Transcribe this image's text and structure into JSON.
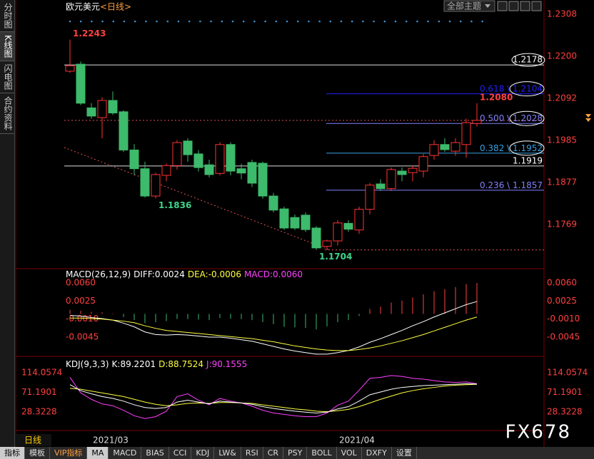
{
  "sidebar": [
    "分时图",
    "K线图",
    "闪电图",
    "合约资料"
  ],
  "main": {
    "title": "欧元美元",
    "period": "<日线>",
    "theme_select": "全部主题",
    "price_ticks": [
      1.2308,
      {
        "value": 1.22,
        "label": "1.2200"
      },
      1.2092,
      1.1985,
      1.1877,
      1.1769
    ],
    "candles": [
      {
        "o": 1.2162,
        "h": 1.2243,
        "l": 1.2158,
        "c": 1.2176
      },
      {
        "o": 1.218,
        "h": 1.2187,
        "l": 1.2075,
        "c": 1.208
      },
      {
        "o": 1.2068,
        "h": 1.208,
        "l": 1.204,
        "c": 1.2047
      },
      {
        "o": 1.2043,
        "h": 1.2095,
        "l": 1.199,
        "c": 1.2087
      },
      {
        "o": 1.2087,
        "h": 1.211,
        "l": 1.205,
        "c": 1.2055
      },
      {
        "o": 1.2058,
        "h": 1.2062,
        "l": 1.1955,
        "c": 1.196
      },
      {
        "o": 1.196,
        "h": 1.1975,
        "l": 1.1895,
        "c": 1.1912
      },
      {
        "o": 1.1912,
        "h": 1.193,
        "l": 1.1838,
        "c": 1.1842
      },
      {
        "o": 1.1842,
        "h": 1.1902,
        "l": 1.1836,
        "c": 1.1897
      },
      {
        "o": 1.1895,
        "h": 1.1925,
        "l": 1.188,
        "c": 1.192
      },
      {
        "o": 1.192,
        "h": 1.1985,
        "l": 1.191,
        "c": 1.1979
      },
      {
        "o": 1.1983,
        "h": 1.199,
        "l": 1.193,
        "c": 1.1948
      },
      {
        "o": 1.195,
        "h": 1.196,
        "l": 1.1905,
        "c": 1.1915
      },
      {
        "o": 1.1922,
        "h": 1.1935,
        "l": 1.189,
        "c": 1.1897
      },
      {
        "o": 1.19,
        "h": 1.198,
        "l": 1.1895,
        "c": 1.1974
      },
      {
        "o": 1.1974,
        "h": 1.198,
        "l": 1.1895,
        "c": 1.1906
      },
      {
        "o": 1.1912,
        "h": 1.1925,
        "l": 1.1885,
        "c": 1.1901
      },
      {
        "o": 1.1928,
        "h": 1.1935,
        "l": 1.1865,
        "c": 1.1875
      },
      {
        "o": 1.1926,
        "h": 1.193,
        "l": 1.1835,
        "c": 1.1842
      },
      {
        "o": 1.1842,
        "h": 1.185,
        "l": 1.18,
        "c": 1.1806
      },
      {
        "o": 1.1809,
        "h": 1.1815,
        "l": 1.1755,
        "c": 1.176
      },
      {
        "o": 1.1787,
        "h": 1.1795,
        "l": 1.1755,
        "c": 1.176
      },
      {
        "o": 1.1793,
        "h": 1.18,
        "l": 1.175,
        "c": 1.1756
      },
      {
        "o": 1.176,
        "h": 1.1765,
        "l": 1.1704,
        "c": 1.1709
      },
      {
        "o": 1.1713,
        "h": 1.173,
        "l": 1.1704,
        "c": 1.1727
      },
      {
        "o": 1.1727,
        "h": 1.178,
        "l": 1.1715,
        "c": 1.1773
      },
      {
        "o": 1.1772,
        "h": 1.178,
        "l": 1.175,
        "c": 1.1757
      },
      {
        "o": 1.1755,
        "h": 1.1815,
        "l": 1.1745,
        "c": 1.1808
      },
      {
        "o": 1.1808,
        "h": 1.1875,
        "l": 1.1795,
        "c": 1.187
      },
      {
        "o": 1.1873,
        "h": 1.1885,
        "l": 1.1855,
        "c": 1.1861
      },
      {
        "o": 1.1861,
        "h": 1.1915,
        "l": 1.1855,
        "c": 1.191
      },
      {
        "o": 1.1906,
        "h": 1.1915,
        "l": 1.188,
        "c": 1.1897
      },
      {
        "o": 1.1902,
        "h": 1.192,
        "l": 1.188,
        "c": 1.1913
      },
      {
        "o": 1.1906,
        "h": 1.195,
        "l": 1.189,
        "c": 1.1943
      },
      {
        "o": 1.1946,
        "h": 1.1985,
        "l": 1.1935,
        "c": 1.1974
      },
      {
        "o": 1.1974,
        "h": 1.199,
        "l": 1.1955,
        "c": 1.1961
      },
      {
        "o": 1.1957,
        "h": 1.199,
        "l": 1.1945,
        "c": 1.1979
      },
      {
        "o": 1.1974,
        "h": 1.204,
        "l": 1.194,
        "c": 1.203
      },
      {
        "o": 1.2028,
        "h": 1.208,
        "l": 1.202,
        "c": 1.2036
      }
    ],
    "extremes": [
      {
        "value": 1.2243,
        "index": 0,
        "pos": "high"
      },
      {
        "value": 1.1836,
        "index": 8,
        "pos": "low"
      },
      {
        "value": 1.1704,
        "index": 23,
        "pos": "low"
      },
      {
        "value": 1.208,
        "index": 38,
        "pos": "high",
        "label": "1.2080"
      }
    ],
    "levels": [
      {
        "value": 1.2178
      },
      {
        "value": 1.1919
      }
    ],
    "fib": [
      {
        "ratio": "0.618",
        "price": 1.2104,
        "color": "#2020ff"
      },
      {
        "ratio": "0.500",
        "price": 1.2028,
        "color": "#8080ff"
      },
      {
        "ratio": "0.382",
        "price": 1.1952,
        "color": "#3aa0e0"
      },
      {
        "ratio": "0.236",
        "price": 1.1857,
        "color": "#8080ff"
      }
    ]
  },
  "macd": {
    "name": "MACD(26,12,9)",
    "diff": "DIFF:0.0024",
    "dea": "DEA:-0.0006",
    "macd": "MACD:0.0060",
    "ticks": [
      {
        "value": 0.006,
        "label": "0.0060"
      },
      0.0025,
      {
        "value": -0.001,
        "label": "-0.0010"
      },
      -0.0045
    ],
    "hist": [
      0.0008,
      0.0006,
      0.0004,
      0.0003,
      0.0001,
      -0.0006,
      -0.0012,
      -0.0018,
      -0.0016,
      -0.0014,
      -0.001,
      -0.001,
      -0.0011,
      -0.0012,
      -0.0008,
      -0.0009,
      -0.001,
      -0.0012,
      -0.0016,
      -0.002,
      -0.0025,
      -0.0026,
      -0.0027,
      -0.003,
      -0.0024,
      -0.0016,
      -0.0012,
      -0.0004,
      0.001,
      0.0014,
      0.0022,
      0.0026,
      0.0032,
      0.0038,
      0.0044,
      0.0048,
      0.0052,
      0.0058,
      0.006
    ],
    "dif": [
      -0.0003,
      -0.0004,
      -0.0007,
      -0.0009,
      -0.0012,
      -0.0018,
      -0.0025,
      -0.0035,
      -0.004,
      -0.0041,
      -0.004,
      -0.0041,
      -0.0043,
      -0.0045,
      -0.0045,
      -0.0047,
      -0.005,
      -0.0053,
      -0.0058,
      -0.0063,
      -0.0068,
      -0.0072,
      -0.0075,
      -0.0078,
      -0.0078,
      -0.0075,
      -0.0071,
      -0.0064,
      -0.0055,
      -0.0048,
      -0.004,
      -0.0032,
      -0.0023,
      -0.0015,
      -0.0006,
      0.0002,
      0.001,
      0.0018,
      0.0024
    ],
    "dea_line": [
      -0.0008,
      -0.0008,
      -0.0009,
      -0.001,
      -0.0012,
      -0.0014,
      -0.0017,
      -0.0023,
      -0.0028,
      -0.0032,
      -0.0034,
      -0.0036,
      -0.0038,
      -0.004,
      -0.0042,
      -0.0044,
      -0.0046,
      -0.0048,
      -0.0051,
      -0.0054,
      -0.0058,
      -0.0062,
      -0.0065,
      -0.0068,
      -0.007,
      -0.0071,
      -0.0071,
      -0.0069,
      -0.0066,
      -0.0062,
      -0.0057,
      -0.0052,
      -0.0046,
      -0.004,
      -0.0033,
      -0.0026,
      -0.0019,
      -0.0012,
      -0.0006
    ]
  },
  "kdj": {
    "name": "KDJ(9,3,3)",
    "k_text": "K:89.2201",
    "d_text": "D:88.7524",
    "j_text": "J:90.1555",
    "ticks": [
      114.0574,
      71.1901,
      28.3228
    ],
    "k": [
      88,
      75,
      68,
      62,
      58,
      52,
      44,
      38,
      36,
      38,
      50,
      54,
      50,
      46,
      52,
      50,
      48,
      45,
      40,
      36,
      33,
      30,
      28,
      26,
      28,
      35,
      40,
      52,
      66,
      72,
      78,
      82,
      84,
      86,
      87,
      88,
      89,
      90,
      89.2201
    ],
    "d": [
      80,
      78,
      74,
      70,
      66,
      62,
      56,
      50,
      45,
      42,
      44,
      47,
      48,
      47,
      49,
      49,
      48,
      47,
      44,
      41,
      38,
      35,
      33,
      30,
      29,
      31,
      34,
      40,
      48,
      56,
      63,
      70,
      75,
      79,
      82,
      85,
      87,
      88,
      88.7524
    ],
    "j": [
      104,
      70,
      56,
      46,
      42,
      32,
      20,
      14,
      18,
      30,
      62,
      68,
      54,
      44,
      58,
      52,
      48,
      41,
      32,
      26,
      23,
      20,
      18,
      18,
      26,
      43,
      52,
      76,
      102,
      104,
      108,
      106,
      102,
      100,
      97,
      94,
      93,
      94,
      90.1555
    ]
  },
  "dates": [
    {
      "label": "2021/03",
      "index": 2
    },
    {
      "label": "2021/04",
      "index": 25
    }
  ],
  "period_button": "日线",
  "toolbar": [
    "指标",
    "模板",
    "VIP指标",
    "MA",
    "MACD",
    "BIAS",
    "CCI",
    "KDJ",
    "LW&",
    "RSI",
    "CR",
    "PSY",
    "BOLL",
    "VOL",
    "DXFY",
    "设置"
  ],
  "watermark": "FX678"
}
